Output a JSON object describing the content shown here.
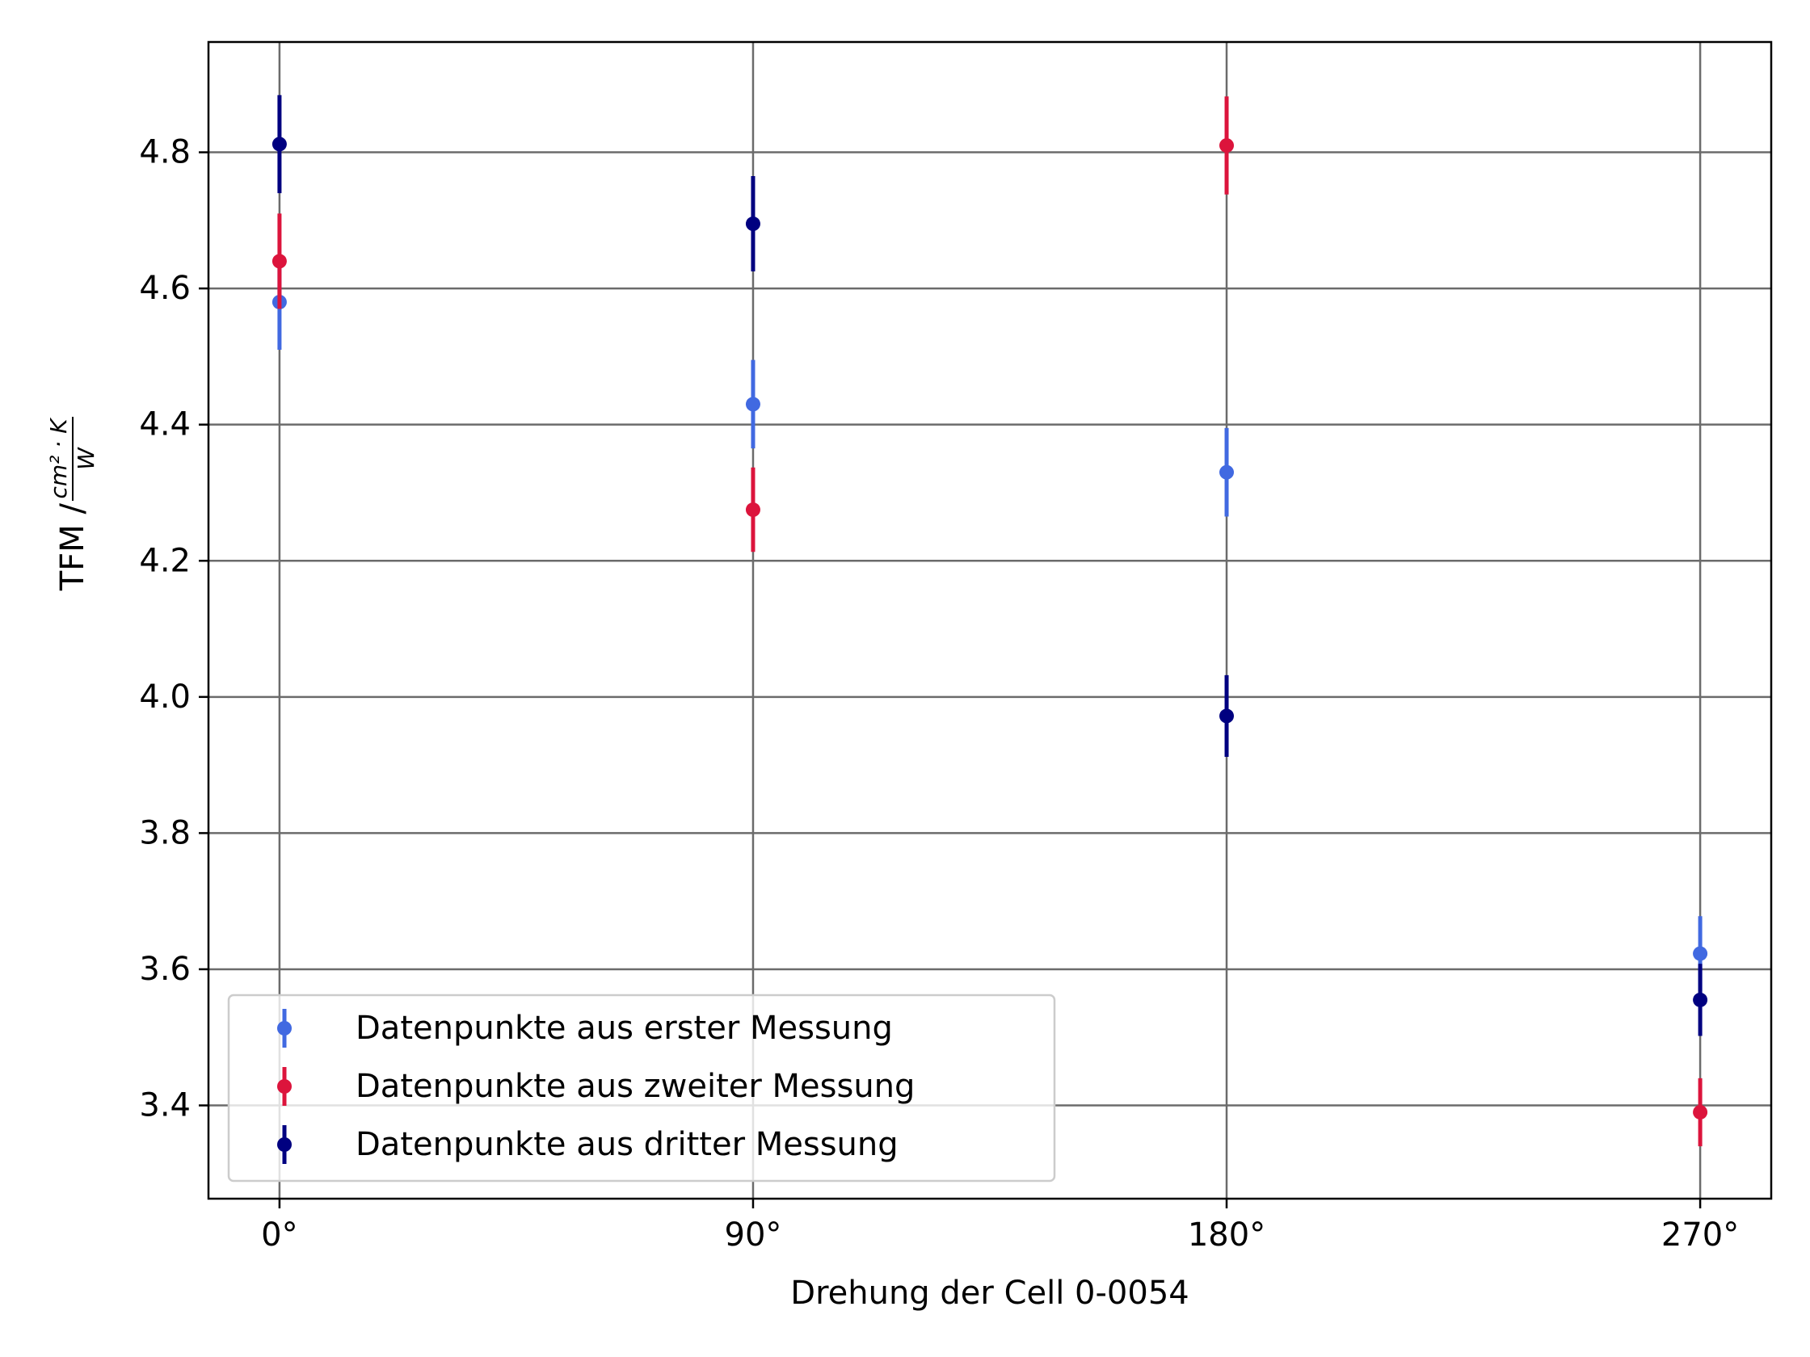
{
  "chart_data": {
    "type": "scatter",
    "xlabel": "Drehung der Cell 0-0054",
    "ylabel": {
      "prefix": "TFM / ",
      "numerator": "cm² · K",
      "denominator": "W"
    },
    "x_ticks": [
      {
        "value": 0,
        "label": "0°"
      },
      {
        "value": 90,
        "label": "90°"
      },
      {
        "value": 180,
        "label": "180°"
      },
      {
        "value": 270,
        "label": "270°"
      }
    ],
    "y_ticks": [
      {
        "value": 3.4,
        "label": "3.4"
      },
      {
        "value": 3.6,
        "label": "3.6"
      },
      {
        "value": 3.8,
        "label": "3.8"
      },
      {
        "value": 4.0,
        "label": "4.0"
      },
      {
        "value": 4.2,
        "label": "4.2"
      },
      {
        "value": 4.4,
        "label": "4.4"
      },
      {
        "value": 4.6,
        "label": "4.6"
      },
      {
        "value": 4.8,
        "label": "4.8"
      }
    ],
    "xlim": [
      -13.5,
      283.5
    ],
    "ylim": [
      3.263,
      4.962
    ],
    "grid": true,
    "legend_position": "lower-left",
    "series": [
      {
        "name": "Datenpunkte aus erster Messung",
        "color": "#4169e1",
        "points": [
          {
            "x": 0,
            "y": 4.58,
            "err": 0.07
          },
          {
            "x": 90,
            "y": 4.43,
            "err": 0.065
          },
          {
            "x": 180,
            "y": 4.33,
            "err": 0.065
          },
          {
            "x": 270,
            "y": 3.623,
            "err": 0.055
          }
        ]
      },
      {
        "name": "Datenpunkte aus zweiter Messung",
        "color": "#dc143c",
        "points": [
          {
            "x": 0,
            "y": 4.64,
            "err": 0.07
          },
          {
            "x": 90,
            "y": 4.275,
            "err": 0.062
          },
          {
            "x": 180,
            "y": 4.81,
            "err": 0.072
          },
          {
            "x": 270,
            "y": 3.39,
            "err": 0.05
          }
        ]
      },
      {
        "name": "Datenpunkte aus dritter Messung",
        "color": "#000080",
        "points": [
          {
            "x": 0,
            "y": 4.812,
            "err": 0.072
          },
          {
            "x": 90,
            "y": 4.695,
            "err": 0.07
          },
          {
            "x": 180,
            "y": 3.972,
            "err": 0.06
          },
          {
            "x": 270,
            "y": 3.555,
            "err": 0.053
          }
        ]
      }
    ]
  }
}
